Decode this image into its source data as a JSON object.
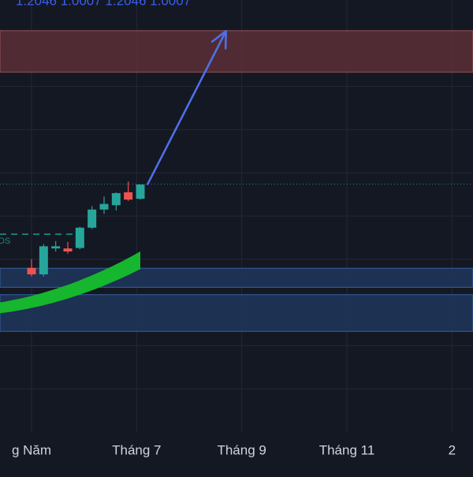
{
  "colors": {
    "background": "#141823",
    "grid": "#232836",
    "candle_up": "#26a69a",
    "candle_down": "#ef5350",
    "resistance_zone": "#5a2f36",
    "resistance_border": "#8a4a52",
    "support_zone": "#1e3459",
    "support_border": "#2f5790",
    "ribbon": "#16b62e",
    "arrow": "#4f6fe8",
    "price_line": "#1e8f8a",
    "label_text": "#d1d4dc",
    "top_text": "#3b5ff0",
    "marker_text": "#1f8a7a"
  },
  "top_text": "1.2046 1.0007 1.2046 1.0007",
  "marker_label": "DS",
  "chart_data": {
    "type": "candlestick",
    "x_ticks": [
      {
        "label": "g Năm",
        "month": 5
      },
      {
        "label": "Tháng 7",
        "month": 7
      },
      {
        "label": "Tháng 9",
        "month": 9
      },
      {
        "label": "Tháng 11",
        "month": 11
      },
      {
        "label": "2",
        "month": 13
      }
    ],
    "x_range_months": [
      4.4,
      13.4
    ],
    "y_range": [
      0,
      100
    ],
    "candles": [
      {
        "month": 5.0,
        "open": 38,
        "high": 40,
        "low": 36,
        "close": 36.5
      },
      {
        "month": 5.23,
        "open": 36.5,
        "high": 43.5,
        "low": 36,
        "close": 43
      },
      {
        "month": 5.46,
        "open": 42.5,
        "high": 44.2,
        "low": 41.8,
        "close": 43
      },
      {
        "month": 5.69,
        "open": 42.5,
        "high": 44,
        "low": 41.3,
        "close": 41.8
      },
      {
        "month": 5.92,
        "open": 42.6,
        "high": 47.5,
        "low": 42.3,
        "close": 47.3
      },
      {
        "month": 6.15,
        "open": 47.3,
        "high": 52.3,
        "low": 47,
        "close": 51.5
      },
      {
        "month": 6.38,
        "open": 51.5,
        "high": 54.5,
        "low": 50.5,
        "close": 52.8
      },
      {
        "month": 6.61,
        "open": 52.5,
        "high": 55.5,
        "low": 51.3,
        "close": 55.3
      },
      {
        "month": 6.84,
        "open": 55.5,
        "high": 58,
        "low": 53.5,
        "close": 53.8
      },
      {
        "month": 7.07,
        "open": 54,
        "high": 57.3,
        "low": 53.8,
        "close": 57.3
      }
    ],
    "resistance_zone": {
      "from": 83.3,
      "to": 92.9
    },
    "support_zones": [
      {
        "from": 33.5,
        "to": 37.9
      },
      {
        "from": 23.3,
        "to": 31.8
      }
    ],
    "price_line": 57.4,
    "marker_level": 45.8,
    "ribbon": {
      "month_start": 4.4,
      "month_end": 7.07,
      "upper_start": 30.0,
      "upper_end": 41.8,
      "lower_start": 27.5,
      "lower_end": 37.7
    },
    "arrow": {
      "from_month": 7.21,
      "from_value": 57.4,
      "to_month": 8.7,
      "to_value": 92.8
    }
  }
}
